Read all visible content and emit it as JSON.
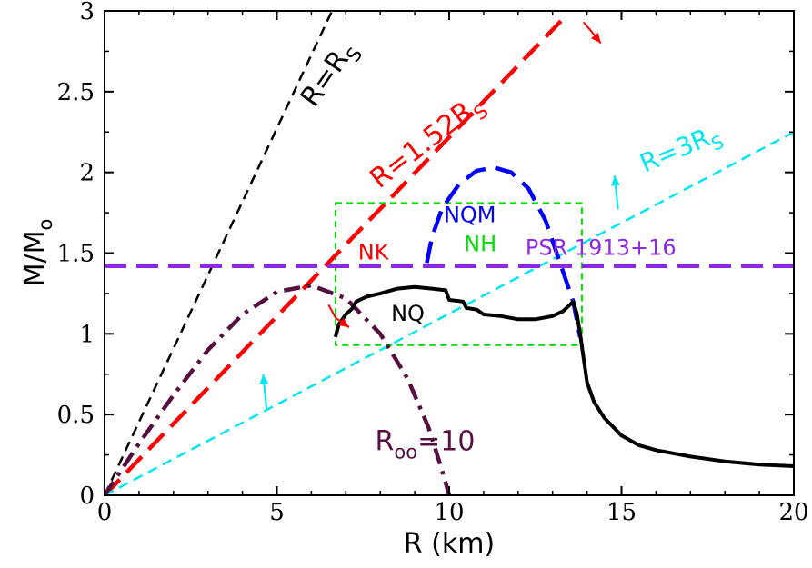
{
  "chart_data": {
    "type": "line",
    "xlabel": "R (km)",
    "ylabel": "M/M",
    "ylabel_sub": "o",
    "xlim": [
      0,
      20
    ],
    "ylim": [
      0,
      3
    ],
    "xticks": [
      0,
      5,
      10,
      15,
      20
    ],
    "yticks": [
      0,
      0.5,
      1,
      1.5,
      2,
      2.5,
      3
    ],
    "xtick_labels": [
      "0",
      "5",
      "10",
      "15",
      "20"
    ],
    "ytick_labels": [
      "0",
      "0.5",
      "1",
      "1.5",
      "2",
      "2.5",
      "3"
    ],
    "grid": false,
    "colors": {
      "black": "#000000",
      "red": "#ff0000",
      "cyan": "#00e5ee",
      "purple": "#8a2be2",
      "maroon": "#551040",
      "blue": "#0000ff",
      "green": "#00dd00"
    },
    "series": [
      {
        "key": "rs",
        "color": "#000000",
        "style": "dashed-thin",
        "points": [
          [
            0,
            0
          ],
          [
            6.6,
            3
          ]
        ]
      },
      {
        "key": "r152",
        "color": "#ff0000",
        "style": "dashed-thick",
        "points": [
          [
            0,
            0
          ],
          [
            13.3,
            2.95
          ]
        ]
      },
      {
        "key": "r3",
        "color": "#00e5ee",
        "style": "dashed-thin",
        "points": [
          [
            0,
            0
          ],
          [
            20,
            2.25
          ]
        ]
      },
      {
        "key": "psr",
        "color": "#8a2be2",
        "style": "dashed-thick",
        "points": [
          [
            0,
            1.42
          ],
          [
            20,
            1.42
          ]
        ]
      },
      {
        "key": "roo",
        "color": "#551040",
        "style": "dashdot",
        "points": [
          [
            0,
            0
          ],
          [
            1,
            0.32
          ],
          [
            2,
            0.62
          ],
          [
            3,
            0.9
          ],
          [
            4,
            1.12
          ],
          [
            5,
            1.26
          ],
          [
            6,
            1.3
          ],
          [
            7,
            1.22
          ],
          [
            8,
            1.0
          ],
          [
            8.8,
            0.72
          ],
          [
            9.4,
            0.42
          ],
          [
            9.8,
            0.15
          ],
          [
            10,
            0
          ]
        ]
      },
      {
        "key": "nqm",
        "color": "#0000ff",
        "style": "dashed-thick",
        "points": [
          [
            9.35,
            1.44
          ],
          [
            9.5,
            1.6
          ],
          [
            9.8,
            1.78
          ],
          [
            10.3,
            1.93
          ],
          [
            10.8,
            2.01
          ],
          [
            11.3,
            2.03
          ],
          [
            11.8,
            2.0
          ],
          [
            12.3,
            1.9
          ],
          [
            12.8,
            1.7
          ],
          [
            13.2,
            1.45
          ],
          [
            13.6,
            1.2
          ],
          [
            13.8,
            0.98
          ]
        ]
      },
      {
        "key": "nq",
        "color": "#000000",
        "style": "solid",
        "points": [
          [
            6.7,
            0.98
          ],
          [
            6.8,
            1.06
          ],
          [
            7.0,
            1.12
          ],
          [
            7.2,
            1.16
          ],
          [
            7.3,
            1.2
          ],
          [
            7.6,
            1.23
          ],
          [
            8.0,
            1.25
          ],
          [
            8.5,
            1.28
          ],
          [
            9.0,
            1.29
          ],
          [
            9.5,
            1.28
          ],
          [
            9.9,
            1.27
          ],
          [
            10.0,
            1.21
          ],
          [
            10.4,
            1.2
          ],
          [
            10.5,
            1.16
          ],
          [
            10.8,
            1.15
          ],
          [
            11.0,
            1.12
          ],
          [
            11.5,
            1.11
          ],
          [
            12.0,
            1.09
          ],
          [
            12.5,
            1.09
          ],
          [
            13.0,
            1.11
          ],
          [
            13.3,
            1.14
          ],
          [
            13.5,
            1.18
          ],
          [
            13.6,
            1.2
          ],
          [
            13.7,
            1.13
          ],
          [
            13.8,
            1.0
          ],
          [
            13.9,
            0.85
          ],
          [
            14.0,
            0.7
          ],
          [
            14.2,
            0.58
          ],
          [
            14.5,
            0.48
          ],
          [
            15.0,
            0.37
          ],
          [
            15.5,
            0.31
          ],
          [
            16.0,
            0.28
          ],
          [
            17.0,
            0.24
          ],
          [
            18.0,
            0.21
          ],
          [
            19.0,
            0.19
          ],
          [
            20.0,
            0.18
          ]
        ]
      }
    ],
    "box": {
      "x": [
        6.7,
        13.85
      ],
      "y": [
        0.93,
        1.81
      ],
      "color": "#00dd00"
    },
    "arrows": [
      {
        "color": "#ff0000",
        "from": [
          6.5,
          1.18
        ],
        "mid": [
          6.7,
          1.1
        ],
        "to": [
          7.1,
          1.04
        ]
      },
      {
        "color": "#ff0000",
        "from": [
          13.9,
          2.93
        ],
        "mid": [
          14.1,
          2.88
        ],
        "to": [
          14.4,
          2.8
        ]
      },
      {
        "color": "#00e5ee",
        "from": [
          4.7,
          0.53
        ],
        "to": [
          4.6,
          0.75
        ]
      },
      {
        "color": "#00e5ee",
        "from": [
          14.9,
          1.77
        ],
        "to": [
          14.8,
          1.98
        ]
      }
    ],
    "annotations": [
      {
        "key": "rs",
        "text": "R=R",
        "sub": "S",
        "color": "#000000",
        "x": 6.7,
        "y": 2.58,
        "rotate": -55,
        "size": 30
      },
      {
        "key": "r152",
        "text": "R=1.52R",
        "sub": "S",
        "color": "#ff0000",
        "x": 9.5,
        "y": 2.15,
        "rotate": -38,
        "size": 30
      },
      {
        "key": "r3",
        "text": "R=3R",
        "sub": "S",
        "color": "#00e5ee",
        "x": 16.8,
        "y": 2.1,
        "rotate": -23,
        "size": 28
      },
      {
        "key": "psr",
        "text": "PSR 1913+16",
        "color": "#8a2be2",
        "x": 14.4,
        "y": 1.49,
        "rotate": 0,
        "size": 24
      },
      {
        "key": "roo",
        "text": "R",
        "sub": "oo",
        "tail": "=10",
        "color": "#551040",
        "x": 9.3,
        "y": 0.28,
        "rotate": 0,
        "size": 30
      },
      {
        "key": "nqm",
        "text": "NQM",
        "color": "#0000ff",
        "x": 10.6,
        "y": 1.69,
        "rotate": 0,
        "size": 24
      },
      {
        "key": "nh",
        "text": "NH",
        "color": "#00dd00",
        "x": 10.9,
        "y": 1.51,
        "rotate": 0,
        "size": 24
      },
      {
        "key": "nk",
        "text": "NK",
        "color": "#ff0000",
        "x": 7.8,
        "y": 1.46,
        "rotate": 0,
        "size": 24
      },
      {
        "key": "nq",
        "text": "NQ",
        "color": "#000000",
        "x": 8.8,
        "y": 1.08,
        "rotate": 0,
        "size": 24
      }
    ]
  }
}
